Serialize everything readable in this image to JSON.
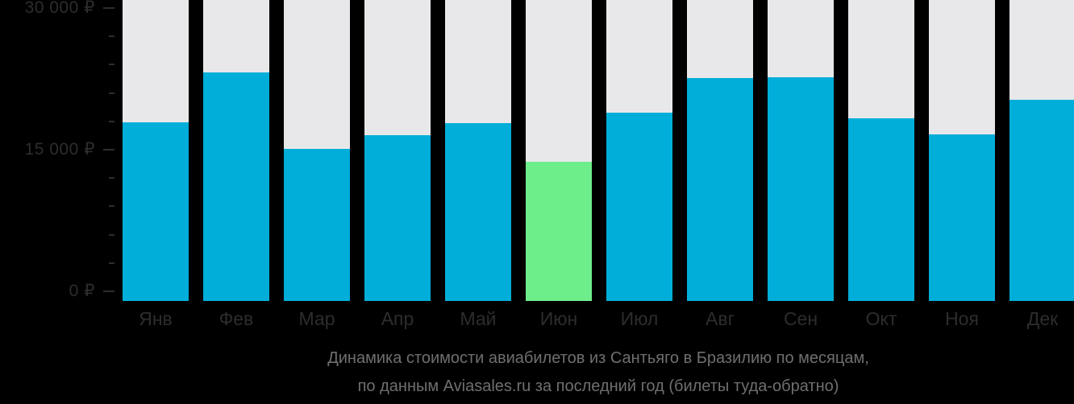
{
  "chart_data": {
    "type": "bar",
    "title": "Динамика стоимости авиабилетов из Сантьяго в Бразилию по месяцам",
    "subtitle": "по данным Aviasales.ru за последний год (билеты туда-обратно)",
    "categories": [
      "Янв",
      "Фев",
      "Мар",
      "Апр",
      "Май",
      "Июн",
      "Июл",
      "Авг",
      "Сен",
      "Окт",
      "Ноя",
      "Дек"
    ],
    "values": [
      17900,
      23200,
      15100,
      16500,
      17800,
      13750,
      18950,
      22600,
      22650,
      18300,
      16650,
      20300
    ],
    "highlight_index": 5,
    "currency": "₽",
    "xlabel": "",
    "ylabel": "₽",
    "ylim": [
      0,
      30000
    ],
    "y_major_ticks": [
      {
        "value": 0,
        "label": "0 ₽"
      },
      {
        "value": 15000,
        "label": "15 000 ₽"
      },
      {
        "value": 30000,
        "label": "30 000 ₽"
      }
    ],
    "y_minor_tick_step": 3000,
    "legend": "none",
    "grid": "off",
    "colors": {
      "bar": "#00AED9",
      "highlight": "#6EEE8B",
      "track": "#E8E8EA",
      "axis_text": "#2D2D2D",
      "caption_text": "#6F6F6F",
      "background": "#000000"
    }
  },
  "caption": {
    "line1": "Динамика стоимости авиабилетов из Сантьяго в Бразилию по месяцам,",
    "line2": "по данным Aviasales.ru за последний год (билеты туда-обратно)"
  }
}
